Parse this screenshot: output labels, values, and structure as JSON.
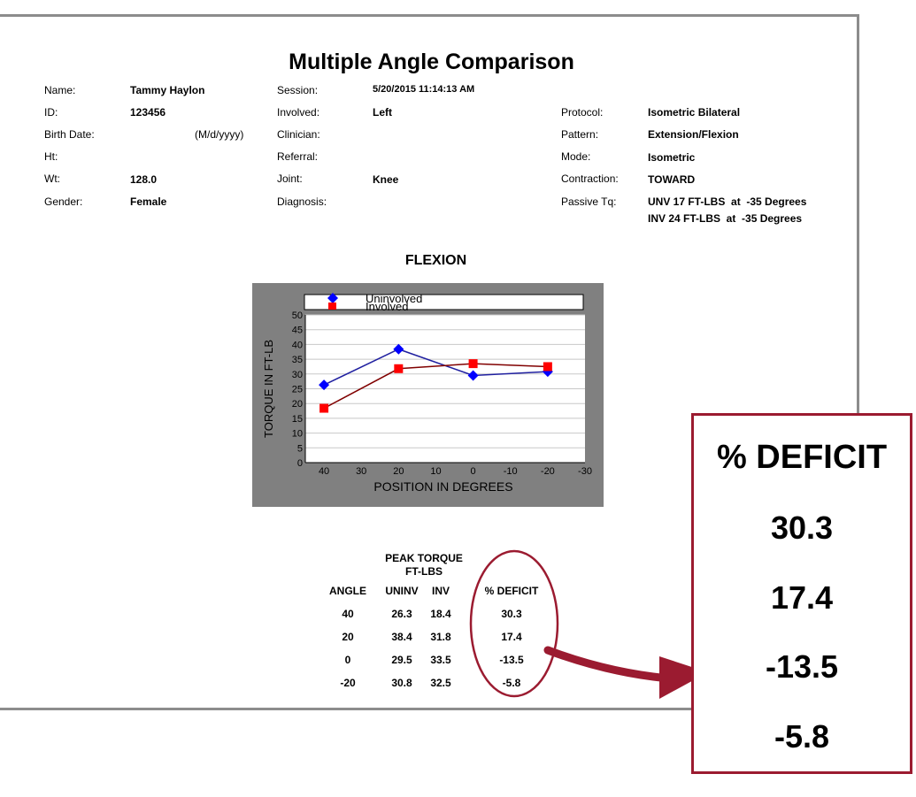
{
  "report": {
    "title": "Multiple Angle Comparison",
    "left": [
      {
        "label": "Name:",
        "value": "Tammy Haylon"
      },
      {
        "label": "ID:",
        "value": "123456"
      },
      {
        "label": "Birth Date:",
        "value": "",
        "note": "(M/d/yyyy)"
      },
      {
        "label": "Ht:",
        "value": ""
      },
      {
        "label": "Wt:",
        "value": "128.0"
      },
      {
        "label": "Gender:",
        "value": "Female"
      }
    ],
    "middle": [
      {
        "label": "Session:",
        "value": "5/20/2015 11:14:13 AM"
      },
      {
        "label": "Involved:",
        "value": "Left"
      },
      {
        "label": "Clinician:",
        "value": ""
      },
      {
        "label": "Referral:",
        "value": ""
      },
      {
        "label": "Joint:",
        "value": "Knee"
      },
      {
        "label": "Diagnosis:",
        "value": ""
      }
    ],
    "right": [
      {
        "label": "Protocol:",
        "value": "Isometric Bilateral"
      },
      {
        "label": "Pattern:",
        "value": "Extension/Flexion"
      },
      {
        "label": "Mode:",
        "value": "Isometric"
      },
      {
        "label": "Contraction:",
        "value": "TOWARD"
      },
      {
        "label": "Passive Tq:",
        "value": "UNV 17 FT-LBS  at  -35 Degrees",
        "value2": "INV 24 FT-LBS  at  -35 Degrees"
      }
    ]
  },
  "chart_data": {
    "type": "line",
    "title": "FLEXION",
    "xlabel": "POSITION IN DEGREES",
    "ylabel": "TORQUE IN FT-LB",
    "x_ticks": [
      "40",
      "30",
      "20",
      "10",
      "0",
      "-10",
      "-20",
      "-30"
    ],
    "y_ticks": [
      "50",
      "45",
      "40",
      "35",
      "30",
      "25",
      "20",
      "15",
      "10",
      "5",
      "0"
    ],
    "ylim": [
      0,
      50
    ],
    "xlim": [
      45,
      -30
    ],
    "x": [
      40,
      20,
      0,
      -20
    ],
    "series": [
      {
        "name": "Uninvolved",
        "values": [
          26.3,
          38.4,
          29.5,
          30.8
        ],
        "color": "#0000ff",
        "line_color": "#2020a0",
        "marker": "diamond"
      },
      {
        "name": "Involved",
        "values": [
          18.4,
          31.8,
          33.5,
          32.5
        ],
        "color": "#ff0000",
        "line_color": "#800000",
        "marker": "square"
      }
    ],
    "grid": true,
    "legend": "top"
  },
  "table": {
    "header_top": "PEAK TORQUE",
    "header_sub": "FT-LBS",
    "columns": [
      "ANGLE",
      "UNINV",
      "INV",
      "% DEFICIT"
    ],
    "rows": [
      [
        "40",
        "26.3",
        "18.4",
        "30.3"
      ],
      [
        "20",
        "38.4",
        "31.8",
        "17.4"
      ],
      [
        "0",
        "29.5",
        "33.5",
        "-13.5"
      ],
      [
        "-20",
        "30.8",
        "32.5",
        "-5.8"
      ]
    ]
  },
  "callout": {
    "title": "% DEFICIT",
    "values": [
      "30.3",
      "17.4",
      "-13.5",
      "-5.8"
    ],
    "color": "#9b1b30"
  }
}
